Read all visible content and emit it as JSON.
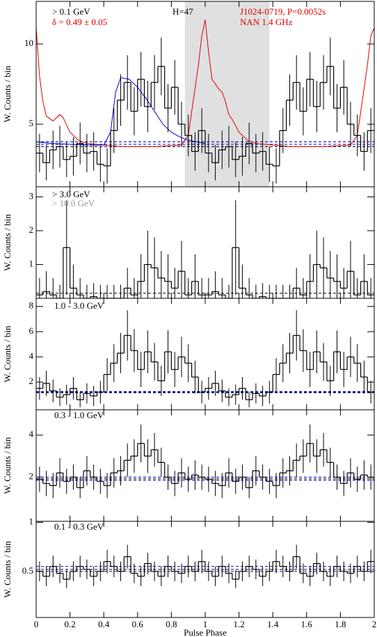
{
  "chart_data": [
    {
      "type": "step",
      "ylabel": "W. Counts / bin",
      "xlim": [
        0,
        2
      ],
      "ylim": [
        1.1,
        12.65
      ],
      "yticks": [
        5,
        10
      ],
      "color": "#000000",
      "values": [
        3.2,
        2.6,
        3.4,
        3.6,
        2.8,
        3.0,
        3.8,
        3.2,
        3.3,
        2.5,
        2.4,
        4.6,
        6.5,
        7.6,
        5.8,
        7.8,
        6.1,
        7.6,
        8.6,
        6.0,
        7.3,
        5.0,
        4.3,
        3.3,
        4.6,
        3.2,
        2.6,
        3.4,
        3.6,
        2.8,
        3.0,
        3.8,
        3.2,
        3.3,
        2.5,
        2.4,
        4.6,
        6.5,
        7.6,
        5.8,
        7.8,
        6.1,
        7.6,
        8.6,
        6.0,
        7.3,
        5.0,
        4.3,
        3.3,
        4.6
      ],
      "errors": [
        1.2,
        1.1,
        1.2,
        1.3,
        1.1,
        1.2,
        1.3,
        1.2,
        1.2,
        1.1,
        1.1,
        1.4,
        1.6,
        1.7,
        1.5,
        1.7,
        1.6,
        1.7,
        1.8,
        1.5,
        1.7,
        1.4,
        1.3,
        1.2,
        1.4,
        1.2,
        1.1,
        1.2,
        1.3,
        1.1,
        1.2,
        1.3,
        1.2,
        1.2,
        1.1,
        1.1,
        1.4,
        1.6,
        1.7,
        1.5,
        1.7,
        1.6,
        1.7,
        1.8,
        1.5,
        1.7,
        1.4,
        1.3,
        1.2,
        1.4
      ],
      "background": [
        {
          "value": 3.6,
          "color": "#000000"
        },
        {
          "value": 3.75,
          "color": "#0000cc"
        },
        {
          "value": 3.9,
          "color": "#0000cc"
        }
      ],
      "shade": [
        0.88,
        1.38
      ],
      "curves": [
        {
          "color": "#dd0000",
          "x": [
            0,
            0.02,
            0.04,
            0.06,
            0.1,
            0.14,
            0.16,
            0.2,
            0.25,
            0.3,
            0.4,
            0.5,
            0.7,
            0.86,
            0.9,
            0.93,
            0.96,
            0.98,
            1.0,
            1.02,
            1.04,
            1.08,
            1.1,
            1.12,
            1.14,
            1.16,
            1.2,
            1.25,
            1.3,
            1.5,
            1.7,
            1.86,
            1.9,
            1.93,
            1.96,
            1.98,
            2.0
          ],
          "y": [
            11,
            8,
            6.4,
            5.5,
            5.2,
            5.6,
            5.4,
            4.5,
            4.0,
            3.8,
            3.7,
            3.6,
            3.6,
            3.7,
            4.3,
            6.5,
            8.7,
            10.5,
            11.5,
            9.5,
            7.8,
            7.2,
            7.0,
            6.4,
            5.6,
            5.3,
            4.5,
            4.0,
            3.8,
            3.6,
            3.6,
            3.7,
            4.3,
            6.5,
            8.7,
            10.5,
            11
          ]
        },
        {
          "color": "#0000cc",
          "x": [
            0,
            0.1,
            0.2,
            0.3,
            0.4,
            0.44,
            0.47,
            0.5,
            0.55,
            0.6,
            0.65,
            0.7,
            0.75,
            0.8,
            0.85,
            0.9,
            0.95,
            1.0
          ],
          "y": [
            3.9,
            3.8,
            3.75,
            3.7,
            3.7,
            4.5,
            7.0,
            7.9,
            7.8,
            7.3,
            6.6,
            5.8,
            5.0,
            4.5,
            4.2,
            4.0,
            3.9,
            3.8
          ]
        }
      ],
      "annotations": [
        {
          "text": "> 0.1 GeV",
          "color": "#000000"
        },
        {
          "text": "δ = 0.49 ± 0.05",
          "color": "#dd0000"
        },
        {
          "text": "H=47",
          "color": "#000000"
        },
        {
          "text": "J1024-0719, P=0.0052s",
          "color": "#dd0000"
        },
        {
          "text": "NAN 1.4 GHz",
          "color": "#dd0000"
        }
      ]
    },
    {
      "type": "step",
      "ylabel": "W. Counts / bin",
      "xlim": [
        0,
        2
      ],
      "ylim": [
        0,
        3.3
      ],
      "yticks": [
        1,
        2,
        3
      ],
      "color": "#000000",
      "values": [
        0.1,
        0.2,
        0.1,
        0.0,
        1.5,
        0.3,
        0.1,
        0.0,
        0.05,
        0.0,
        0.0,
        0.0,
        0.0,
        0.3,
        0.1,
        0.5,
        1.0,
        0.9,
        0.6,
        0.5,
        0.3,
        0.8,
        0.1,
        0.5,
        0.1,
        0.1,
        0.2,
        0.1,
        0.0,
        1.5,
        0.3,
        0.1,
        0.0,
        0.05,
        0.0,
        0.0,
        0.0,
        0.0,
        0.3,
        0.1,
        0.5,
        1.0,
        0.9,
        0.6,
        0.5,
        0.3,
        0.8,
        0.1,
        0.5,
        0.1
      ],
      "errors": [
        0.5,
        0.6,
        0.5,
        0.4,
        1.4,
        0.7,
        0.5,
        0.4,
        0.4,
        0.4,
        0.4,
        0.4,
        0.4,
        0.6,
        0.5,
        0.8,
        1.0,
        0.9,
        0.8,
        0.8,
        0.6,
        0.9,
        0.5,
        0.8,
        0.5,
        0.5,
        0.6,
        0.5,
        0.4,
        1.4,
        0.7,
        0.5,
        0.4,
        0.4,
        0.4,
        0.4,
        0.4,
        0.4,
        0.6,
        0.5,
        0.8,
        1.0,
        0.9,
        0.8,
        0.8,
        0.6,
        0.9,
        0.5,
        0.8,
        0.5
      ],
      "background": [
        {
          "value": 0.15,
          "color": "#000000"
        }
      ],
      "annotations": [
        {
          "text": "> 3.0 GeV",
          "color": "#000000"
        },
        {
          "text": "> 10.0 GeV",
          "color": "#999999"
        }
      ]
    },
    {
      "type": "step",
      "ylabel": "W. Counts / bin",
      "xlim": [
        0,
        2
      ],
      "ylim": [
        -0.2,
        8.65
      ],
      "yticks": [
        2,
        4,
        6,
        8
      ],
      "color": "#000000",
      "values": [
        1.5,
        1.9,
        1.3,
        0.8,
        1.0,
        1.5,
        0.6,
        1.1,
        0.9,
        1.2,
        2.6,
        3.5,
        4.3,
        5.7,
        4.5,
        3.0,
        4.4,
        3.6,
        2.1,
        4.4,
        3.0,
        4.0,
        3.5,
        2.4,
        1.2,
        1.5,
        1.9,
        1.3,
        0.8,
        1.0,
        1.5,
        0.6,
        1.1,
        0.9,
        1.2,
        2.6,
        3.5,
        4.3,
        5.7,
        4.5,
        3.0,
        4.4,
        3.6,
        2.1,
        4.4,
        3.0,
        4.0,
        3.5,
        2.4,
        1.2
      ],
      "errors": [
        0.9,
        1.0,
        0.9,
        0.7,
        0.8,
        0.9,
        0.6,
        0.8,
        0.8,
        0.9,
        1.3,
        1.5,
        1.6,
        2.0,
        1.7,
        1.4,
        1.7,
        1.5,
        1.2,
        1.7,
        1.4,
        1.6,
        1.5,
        1.3,
        0.9,
        0.9,
        1.0,
        0.9,
        0.7,
        0.8,
        0.9,
        0.6,
        0.8,
        0.8,
        0.9,
        1.3,
        1.5,
        1.6,
        2.0,
        1.7,
        1.4,
        1.7,
        1.5,
        1.2,
        1.7,
        1.4,
        1.6,
        1.5,
        1.3,
        0.9
      ],
      "background": [
        {
          "value": 1.15,
          "color": "#0000cc"
        },
        {
          "value": 1.2,
          "color": "#000000"
        },
        {
          "value": 1.25,
          "color": "#0000cc"
        }
      ],
      "annotations": [
        {
          "text": "1.0 - 3.0 GeV",
          "color": "#000000"
        }
      ]
    },
    {
      "type": "step",
      "ylabel": "W. Counts / bin",
      "xlim": [
        0,
        2
      ],
      "ylim": [
        -0.1,
        5.2
      ],
      "yticks": [
        2,
        4
      ],
      "color": "#000000",
      "values": [
        1.9,
        1.7,
        1.6,
        2.2,
        1.8,
        2.0,
        1.5,
        2.3,
        2.0,
        1.8,
        1.6,
        2.2,
        2.3,
        2.8,
        3.0,
        3.6,
        3.0,
        3.3,
        2.7,
        2.0,
        1.7,
        2.2,
        1.9,
        2.1,
        2.0,
        1.9,
        1.7,
        1.6,
        2.2,
        1.8,
        2.0,
        1.5,
        2.3,
        2.0,
        1.8,
        1.6,
        2.2,
        2.3,
        2.8,
        3.0,
        3.6,
        3.0,
        3.3,
        2.7,
        2.0,
        1.7,
        2.2,
        1.9,
        2.1,
        2.0
      ],
      "errors": [
        0.6,
        0.6,
        0.6,
        0.7,
        0.6,
        0.6,
        0.5,
        0.7,
        0.6,
        0.6,
        0.6,
        0.7,
        0.7,
        0.8,
        0.8,
        0.9,
        0.8,
        0.8,
        0.7,
        0.6,
        0.6,
        0.7,
        0.6,
        0.7,
        0.6,
        0.6,
        0.6,
        0.6,
        0.7,
        0.6,
        0.6,
        0.5,
        0.7,
        0.6,
        0.6,
        0.6,
        0.7,
        0.7,
        0.8,
        0.8,
        0.9,
        0.8,
        0.8,
        0.7,
        0.6,
        0.6,
        0.7,
        0.6,
        0.7,
        0.6
      ],
      "background": [
        {
          "value": 1.85,
          "color": "#0000cc"
        },
        {
          "value": 1.92,
          "color": "#000000"
        },
        {
          "value": 2.0,
          "color": "#0000cc"
        }
      ],
      "annotations": [
        {
          "text": "0.3 - 1.0 GeV",
          "color": "#000000"
        }
      ]
    },
    {
      "type": "step",
      "ylabel": "W. Counts / bin",
      "xlabel": "Pulse Phase",
      "xlim": [
        0,
        2
      ],
      "ylim": [
        0.03,
        1.01
      ],
      "yticks": [
        0.5,
        1
      ],
      "xticks": [
        0,
        0.2,
        0.4,
        0.6,
        0.8,
        1,
        1.2,
        1.4,
        1.6,
        1.8,
        2
      ],
      "color": "#000000",
      "values": [
        0.5,
        0.45,
        0.55,
        0.48,
        0.42,
        0.5,
        0.55,
        0.52,
        0.45,
        0.5,
        0.6,
        0.55,
        0.5,
        0.65,
        0.48,
        0.45,
        0.58,
        0.5,
        0.45,
        0.55,
        0.5,
        0.48,
        0.55,
        0.5,
        0.6,
        0.5,
        0.45,
        0.55,
        0.48,
        0.42,
        0.5,
        0.55,
        0.52,
        0.45,
        0.5,
        0.6,
        0.55,
        0.5,
        0.65,
        0.48,
        0.45,
        0.58,
        0.5,
        0.45,
        0.55,
        0.5,
        0.48,
        0.55,
        0.5,
        0.6
      ],
      "errors": [
        0.1,
        0.1,
        0.11,
        0.1,
        0.09,
        0.1,
        0.11,
        0.1,
        0.1,
        0.1,
        0.12,
        0.11,
        0.1,
        0.12,
        0.1,
        0.1,
        0.11,
        0.1,
        0.1,
        0.11,
        0.1,
        0.1,
        0.11,
        0.1,
        0.12,
        0.1,
        0.1,
        0.11,
        0.1,
        0.09,
        0.1,
        0.11,
        0.1,
        0.1,
        0.1,
        0.12,
        0.11,
        0.1,
        0.12,
        0.1,
        0.1,
        0.11,
        0.1,
        0.1,
        0.11,
        0.1,
        0.1,
        0.11,
        0.1,
        0.12
      ],
      "background": [
        {
          "value": 0.5,
          "color": "#0000cc"
        },
        {
          "value": 0.52,
          "color": "#000000"
        },
        {
          "value": 0.55,
          "color": "#0000cc"
        }
      ],
      "annotations": [
        {
          "text": "0.1 - 0.3 GeV",
          "color": "#000000"
        }
      ]
    }
  ]
}
